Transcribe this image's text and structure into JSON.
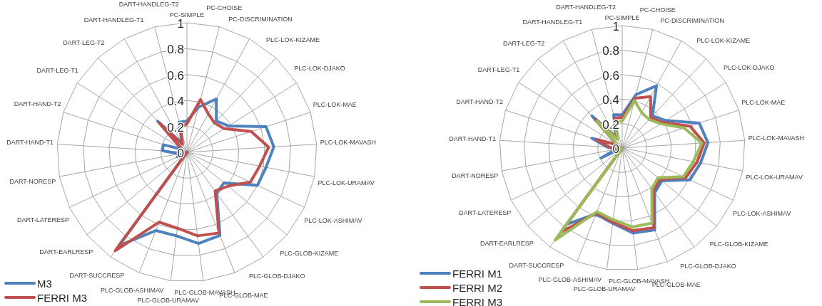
{
  "chart_data": [
    {
      "type": "radar",
      "categories": [
        "PC-SIMPLE",
        "PC-CHOISE",
        "PC-DISCRIMINATION",
        "PLC-LOK-KIZAME",
        "PLC-LOK-DJAKO",
        "PLC-LOK-MAE",
        "PLC-LOK-MAVASH",
        "PLC-LOK-URAMAV",
        "PLC-LOK-ASHIMAV",
        "PLC-GLOB-KIZAME",
        "PLC-GLOB-DJAKO",
        "PLC-GLOB-MAE",
        "PLC-GLOB-MAVASH",
        "PLC-GLOB-URAMAV",
        "PLC-GLOB-ASHIMAV",
        "DART-SUCCRESP",
        "DART-EARLRESP",
        "DART-LATERESP",
        "DART-NORESP",
        "DART-HAND-T1",
        "DART-HAND-T2",
        "DART-LEG-T1",
        "DART-LEG-T2",
        "DART-HANDLEG-T1",
        "DART-HANDLEG-T2"
      ],
      "series": [
        {
          "name": "M3",
          "color": "#4f81bd",
          "values": [
            0.24,
            0.36,
            0.47,
            0.33,
            0.38,
            0.64,
            0.67,
            0.62,
            0.6,
            0.37,
            0.39,
            0.69,
            0.71,
            0.65,
            0.65,
            0.89,
            0,
            0.08,
            0.06,
            0.19,
            0.19,
            0.04,
            0.33,
            0.08,
            0.24
          ]
        },
        {
          "name": "FERRI M3",
          "color": "#c0504d",
          "values": [
            0.22,
            0.42,
            0.34,
            0.31,
            0.34,
            0.52,
            0.63,
            0.57,
            0.54,
            0.41,
            0.37,
            0.67,
            0.65,
            0.59,
            0.58,
            0.94,
            0,
            0,
            0.02,
            0.03,
            0.04,
            0.05,
            0.31,
            0.07,
            0.2
          ]
        }
      ],
      "ylim": [
        0,
        1
      ],
      "yticks": [
        0,
        0.2,
        0.4,
        0.6,
        0.8,
        1
      ],
      "grid": true,
      "legend": "bottom left"
    },
    {
      "type": "radar",
      "categories": [
        "PC-SIMPLE",
        "PC-CHOISE",
        "PC-DISCRIMINATION",
        "PLC-LOK-KIZAME",
        "PLC-LOK-DJAKO",
        "PLC-LOK-MAE",
        "PLC-LOK-MAVASH",
        "PLC-LOK-URAMAV",
        "PLC-LOK-ASHIMAV",
        "PLC-GLOB-KIZAME",
        "PLC-GLOB-DJAKO",
        "PLC-GLOB-MAE",
        "PLC-GLOB-MAVASH",
        "PLC-GLOB-URAMAV",
        "PLC-GLOB-ASHIMAV",
        "DART-SUCCRESP",
        "DART-EARLRESP",
        "DART-LATERESP",
        "DART-NORESP",
        "DART-HAND-T1",
        "DART-HAND-T2",
        "DART-LEG-T1",
        "DART-LEG-T2",
        "DART-HANDLEG-T1",
        "DART-HANDLEG-T2"
      ],
      "series": [
        {
          "name": "FERRI M1",
          "color": "#4f81bd",
          "values": [
            0.27,
            0.45,
            0.58,
            0.36,
            0.42,
            0.66,
            0.7,
            0.65,
            0.61,
            0.42,
            0.45,
            0.72,
            0.7,
            0.62,
            0.58,
            0.77,
            0,
            0.19,
            0.05,
            0.12,
            0.26,
            0.05,
            0.36,
            0.1,
            0.28
          ]
        },
        {
          "name": "FERRI M2",
          "color": "#c0504d",
          "values": [
            0.25,
            0.42,
            0.48,
            0.34,
            0.39,
            0.58,
            0.67,
            0.62,
            0.57,
            0.4,
            0.43,
            0.7,
            0.68,
            0.61,
            0.57,
            0.85,
            0,
            0.07,
            0.04,
            0.1,
            0.22,
            0.05,
            0.32,
            0.09,
            0.25
          ]
        },
        {
          "name": "FERRI M3",
          "color": "#9bbb59",
          "values": [
            0.22,
            0.4,
            0.33,
            0.32,
            0.37,
            0.53,
            0.65,
            0.59,
            0.55,
            0.38,
            0.41,
            0.66,
            0.65,
            0.59,
            0.56,
            0.93,
            0,
            0.02,
            0.02,
            0.03,
            0.05,
            0.05,
            0.3,
            0.08,
            0.22
          ]
        }
      ],
      "ylim": [
        0,
        1
      ],
      "yticks": [
        0,
        0.2,
        0.4,
        0.6,
        0.8,
        1
      ],
      "grid": true,
      "legend": "bottom left"
    }
  ]
}
